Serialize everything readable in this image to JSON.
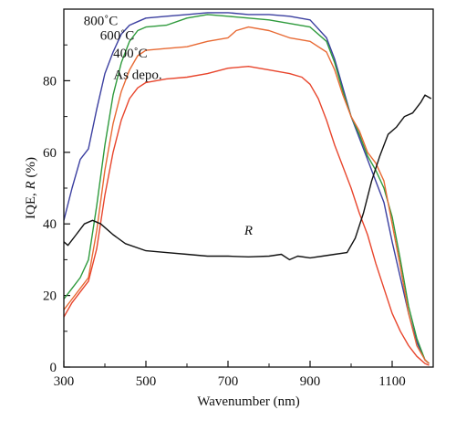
{
  "chart_data": {
    "type": "line",
    "title": "",
    "xlabel": "Wavenumber (nm)",
    "ylabel_prefix": "IQE, ",
    "ylabel_italic": "R",
    "ylabel_suffix": " (%)",
    "xlim": [
      300,
      1200
    ],
    "ylim": [
      0,
      100
    ],
    "xticks": [
      300,
      500,
      700,
      900,
      1100
    ],
    "yticks": [
      0,
      20,
      40,
      60,
      80
    ],
    "grid": false,
    "legend": "inline labels",
    "series": [
      {
        "name": "800˚C",
        "color": "#3b3fa0",
        "label_at": [
          390,
          95.5
        ],
        "points": [
          [
            300,
            41
          ],
          [
            320,
            50
          ],
          [
            340,
            58
          ],
          [
            360,
            61
          ],
          [
            380,
            72
          ],
          [
            400,
            82
          ],
          [
            420,
            88
          ],
          [
            440,
            93
          ],
          [
            460,
            95.5
          ],
          [
            480,
            96.5
          ],
          [
            500,
            97.5
          ],
          [
            550,
            98
          ],
          [
            600,
            98.5
          ],
          [
            650,
            99
          ],
          [
            700,
            99
          ],
          [
            750,
            98.5
          ],
          [
            800,
            98.5
          ],
          [
            850,
            98
          ],
          [
            900,
            97
          ],
          [
            940,
            92
          ],
          [
            960,
            86
          ],
          [
            980,
            78
          ],
          [
            1000,
            70
          ],
          [
            1020,
            64
          ],
          [
            1040,
            58
          ],
          [
            1060,
            52
          ],
          [
            1080,
            46
          ],
          [
            1100,
            35
          ],
          [
            1120,
            25
          ],
          [
            1140,
            15
          ],
          [
            1160,
            7
          ],
          [
            1180,
            2
          ],
          [
            1190,
            1
          ]
        ]
      },
      {
        "name": "600˚C",
        "color": "#2e9a3c",
        "label_at": [
          430,
          91.5
        ],
        "points": [
          [
            300,
            19
          ],
          [
            320,
            22
          ],
          [
            340,
            25
          ],
          [
            360,
            30
          ],
          [
            380,
            45
          ],
          [
            400,
            62
          ],
          [
            420,
            76
          ],
          [
            440,
            85
          ],
          [
            460,
            91
          ],
          [
            480,
            94
          ],
          [
            500,
            95
          ],
          [
            550,
            95.5
          ],
          [
            600,
            97.5
          ],
          [
            650,
            98.5
          ],
          [
            700,
            98
          ],
          [
            750,
            97.5
          ],
          [
            800,
            97
          ],
          [
            850,
            96
          ],
          [
            900,
            95
          ],
          [
            940,
            91
          ],
          [
            960,
            85
          ],
          [
            980,
            77
          ],
          [
            1000,
            70
          ],
          [
            1020,
            65
          ],
          [
            1040,
            59
          ],
          [
            1060,
            55
          ],
          [
            1080,
            50
          ],
          [
            1100,
            42
          ],
          [
            1120,
            30
          ],
          [
            1140,
            17
          ],
          [
            1160,
            8
          ],
          [
            1180,
            2
          ],
          [
            1190,
            1
          ]
        ]
      },
      {
        "name": "400˚C",
        "color": "#e86a34",
        "label_at": [
          462,
          86.5
        ],
        "points": [
          [
            300,
            16
          ],
          [
            320,
            19
          ],
          [
            340,
            22
          ],
          [
            360,
            25
          ],
          [
            380,
            38
          ],
          [
            400,
            55
          ],
          [
            420,
            68
          ],
          [
            440,
            77
          ],
          [
            460,
            83
          ],
          [
            480,
            87
          ],
          [
            500,
            88.5
          ],
          [
            550,
            89
          ],
          [
            600,
            89.5
          ],
          [
            650,
            91
          ],
          [
            700,
            92
          ],
          [
            720,
            94
          ],
          [
            750,
            95
          ],
          [
            800,
            94
          ],
          [
            850,
            92
          ],
          [
            900,
            91
          ],
          [
            940,
            88
          ],
          [
            960,
            83
          ],
          [
            980,
            76
          ],
          [
            1000,
            70
          ],
          [
            1020,
            66
          ],
          [
            1040,
            60
          ],
          [
            1060,
            57
          ],
          [
            1080,
            52
          ],
          [
            1100,
            40
          ],
          [
            1120,
            28
          ],
          [
            1140,
            15
          ],
          [
            1160,
            6
          ],
          [
            1180,
            2
          ],
          [
            1190,
            1
          ]
        ]
      },
      {
        "name": "As depo.",
        "color": "#e8452c",
        "label_at": [
          480,
          80.5
        ],
        "points": [
          [
            300,
            14
          ],
          [
            320,
            18
          ],
          [
            340,
            21
          ],
          [
            360,
            24
          ],
          [
            380,
            33
          ],
          [
            400,
            48
          ],
          [
            420,
            60
          ],
          [
            440,
            69
          ],
          [
            460,
            75
          ],
          [
            480,
            78
          ],
          [
            500,
            79.5
          ],
          [
            550,
            80.5
          ],
          [
            600,
            81
          ],
          [
            650,
            82
          ],
          [
            700,
            83.5
          ],
          [
            750,
            84
          ],
          [
            800,
            83
          ],
          [
            850,
            82
          ],
          [
            880,
            81
          ],
          [
            900,
            79
          ],
          [
            920,
            75
          ],
          [
            940,
            69
          ],
          [
            960,
            62
          ],
          [
            980,
            56
          ],
          [
            1000,
            50
          ],
          [
            1020,
            43
          ],
          [
            1040,
            37
          ],
          [
            1060,
            29
          ],
          [
            1080,
            22
          ],
          [
            1100,
            15
          ],
          [
            1120,
            10
          ],
          [
            1140,
            6
          ],
          [
            1160,
            3
          ],
          [
            1180,
            1
          ],
          [
            1190,
            0.5
          ]
        ]
      },
      {
        "name": "R",
        "color": "#111111",
        "label_at": [
          750,
          37
        ],
        "label_italic": true,
        "points": [
          [
            300,
            35
          ],
          [
            310,
            34
          ],
          [
            330,
            37
          ],
          [
            350,
            40
          ],
          [
            370,
            41
          ],
          [
            390,
            40
          ],
          [
            420,
            37
          ],
          [
            450,
            34.5
          ],
          [
            500,
            32.5
          ],
          [
            550,
            32
          ],
          [
            600,
            31.5
          ],
          [
            650,
            31
          ],
          [
            700,
            31
          ],
          [
            750,
            30.8
          ],
          [
            800,
            31
          ],
          [
            830,
            31.5
          ],
          [
            850,
            30
          ],
          [
            870,
            31
          ],
          [
            900,
            30.5
          ],
          [
            930,
            31
          ],
          [
            960,
            31.5
          ],
          [
            990,
            32
          ],
          [
            1010,
            36
          ],
          [
            1030,
            43
          ],
          [
            1050,
            52
          ],
          [
            1070,
            59
          ],
          [
            1090,
            65
          ],
          [
            1110,
            67
          ],
          [
            1130,
            70
          ],
          [
            1150,
            71
          ],
          [
            1170,
            74
          ],
          [
            1180,
            76
          ],
          [
            1195,
            75
          ]
        ]
      }
    ]
  }
}
